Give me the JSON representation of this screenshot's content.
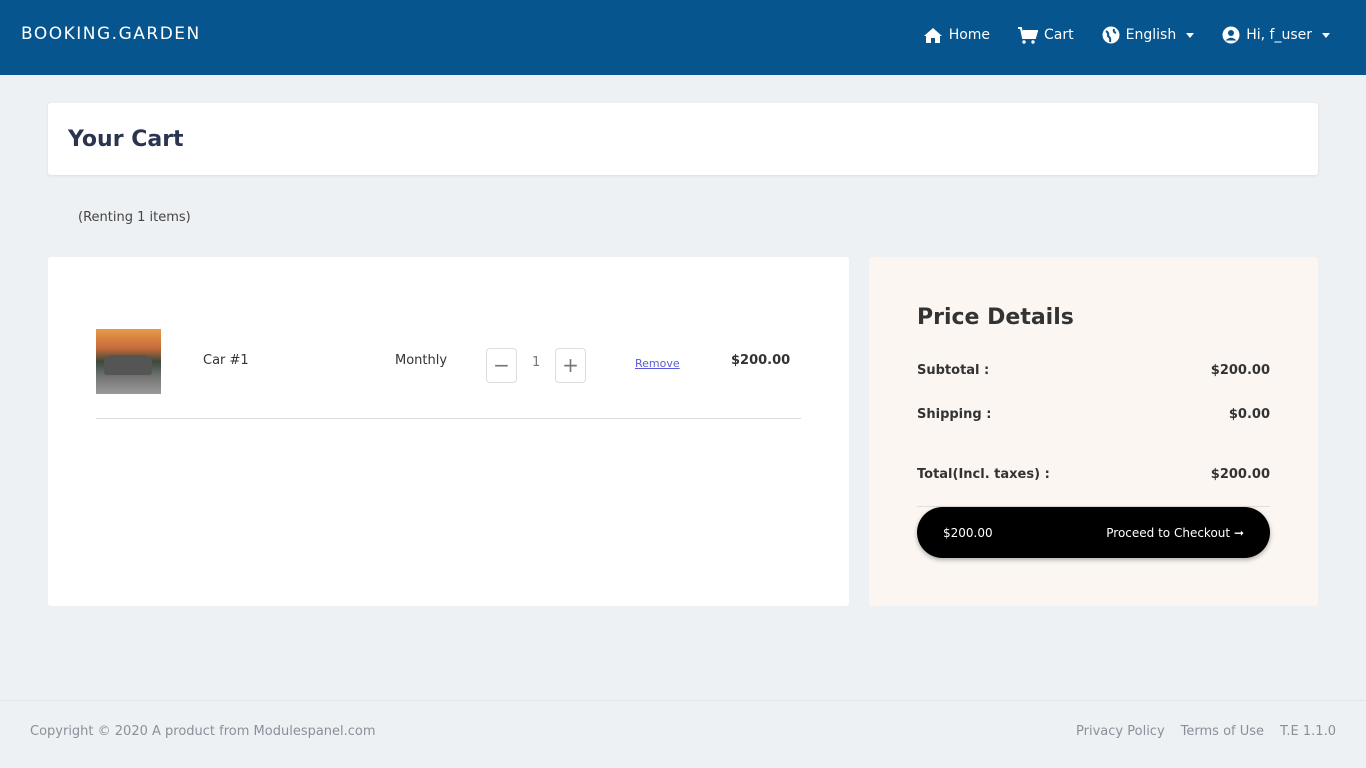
{
  "nav": {
    "brand": "BOOKING.GARDEN",
    "home": "Home",
    "cart": "Cart",
    "language": "English",
    "user": "Hi, f_user"
  },
  "page": {
    "title": "Your Cart",
    "renting": "(Renting 1 items)"
  },
  "cart": {
    "items": [
      {
        "name": "Car #1",
        "period": "Monthly",
        "quantity": "1",
        "remove": "Remove",
        "price": "$200.00"
      }
    ]
  },
  "price": {
    "title": "Price Details",
    "subtotal_label": "Subtotal :",
    "subtotal": "$200.00",
    "shipping_label": "Shipping :",
    "shipping": "$0.00",
    "total_label": "Total(Incl. taxes) :",
    "total": "$200.00",
    "checkout_amount": "$200.00",
    "checkout_label": "Proceed to Checkout"
  },
  "footer": {
    "copyright": "Copyright © 2020 A product from Modulespanel.com",
    "privacy": "Privacy Policy",
    "terms": "Terms of Use",
    "version": "T.E 1.1.0"
  },
  "colors": {
    "nav": "#06558f",
    "checkout": "#000000",
    "remove_link": "#5a5ad6"
  }
}
